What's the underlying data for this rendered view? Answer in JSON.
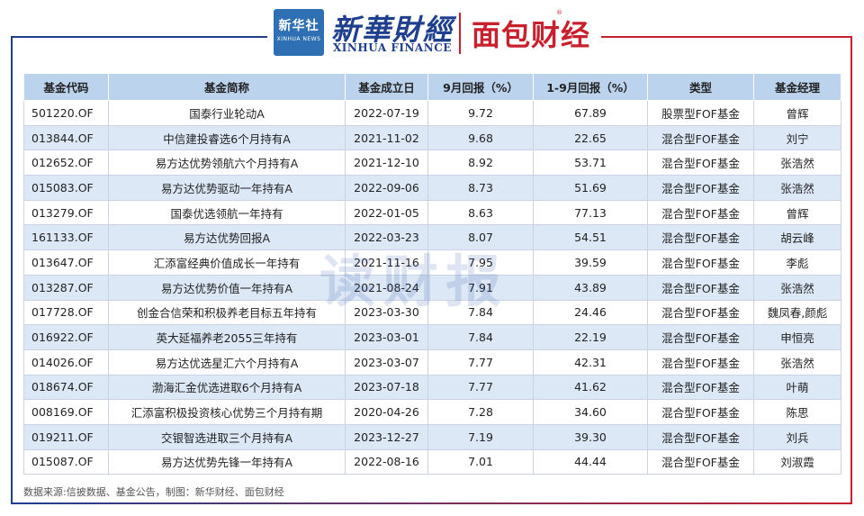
{
  "header": {
    "xinhua_logo_line1": "新华社",
    "xinhua_logo_line2": "XINHUA NEWS",
    "xinhua_finance_cn": "新華財經",
    "xinhua_finance_en": "XINHUA FINANCE",
    "mianbao_logo": "面包财经",
    "registered_mark": "®"
  },
  "watermark": "读财报",
  "table": {
    "columns": [
      "基金代码",
      "基金简称",
      "基金成立日",
      "9月回报（%）",
      "1-9月回报（%）",
      "类型",
      "基金经理"
    ],
    "rows": [
      [
        "501220.OF",
        "国泰行业轮动A",
        "2022-07-19",
        "9.72",
        "67.89",
        "股票型FOF基金",
        "曾辉"
      ],
      [
        "013844.OF",
        "中信建投睿选6个月持有A",
        "2021-11-02",
        "9.68",
        "22.65",
        "混合型FOF基金",
        "刘宁"
      ],
      [
        "012652.OF",
        "易方达优势领航六个月持有A",
        "2021-12-10",
        "8.92",
        "53.71",
        "混合型FOF基金",
        "张浩然"
      ],
      [
        "015083.OF",
        "易方达优势驱动一年持有A",
        "2022-09-06",
        "8.73",
        "51.69",
        "混合型FOF基金",
        "张浩然"
      ],
      [
        "013279.OF",
        "国泰优选领航一年持有",
        "2022-01-05",
        "8.63",
        "77.13",
        "混合型FOF基金",
        "曾辉"
      ],
      [
        "161133.OF",
        "易方达优势回报A",
        "2022-03-23",
        "8.07",
        "54.51",
        "混合型FOF基金",
        "胡云峰"
      ],
      [
        "013647.OF",
        "汇添富经典价值成长一年持有",
        "2021-11-16",
        "7.95",
        "39.59",
        "混合型FOF基金",
        "李彪"
      ],
      [
        "013287.OF",
        "易方达优势价值一年持有A",
        "2021-08-24",
        "7.91",
        "43.89",
        "混合型FOF基金",
        "张浩然"
      ],
      [
        "017728.OF",
        "创金合信荣和积极养老目标五年持有",
        "2023-03-30",
        "7.84",
        "24.46",
        "混合型FOF基金",
        "魏凤春,颜彪"
      ],
      [
        "016922.OF",
        "英大延福养老2055三年持有",
        "2023-03-01",
        "7.84",
        "22.19",
        "混合型FOF基金",
        "申恒亮"
      ],
      [
        "014026.OF",
        "易方达优选星汇六个月持有A",
        "2023-03-07",
        "7.77",
        "42.31",
        "混合型FOF基金",
        "张浩然"
      ],
      [
        "018674.OF",
        "渤海汇金优选进取6个月持有A",
        "2023-07-18",
        "7.77",
        "41.62",
        "混合型FOF基金",
        "叶萌"
      ],
      [
        "008169.OF",
        "汇添富积极投资核心优势三个月持有期",
        "2020-04-26",
        "7.28",
        "34.60",
        "混合型FOF基金",
        "陈思"
      ],
      [
        "019211.OF",
        "交银智选进取三个月持有A",
        "2023-12-27",
        "7.19",
        "39.30",
        "混合型FOF基金",
        "刘兵"
      ],
      [
        "015087.OF",
        "易方达优势先锋一年持有A",
        "2022-08-16",
        "7.01",
        "44.44",
        "混合型FOF基金",
        "刘淑霞"
      ]
    ]
  },
  "footer": "数据来源:信披数据、基金公告，制图：新华财经、面包财经"
}
